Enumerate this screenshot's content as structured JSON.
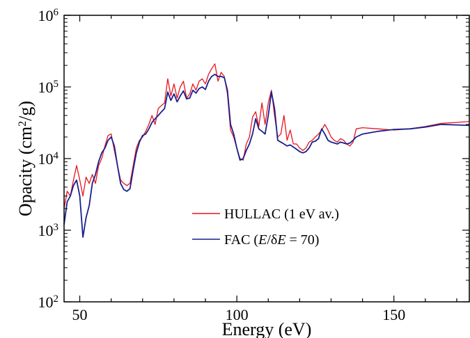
{
  "chart_data": {
    "type": "line",
    "title": "",
    "xlabel": "Energy (eV)",
    "ylabel_parts": {
      "main": "Opacity (cm",
      "sup": "2",
      "tail": "/g)"
    },
    "xlim": [
      45,
      174
    ],
    "ylim": [
      100,
      1000000
    ],
    "yscale": "log",
    "grid": false,
    "legend_position": "center",
    "x_ticks": [
      {
        "value": 50,
        "label": "50"
      },
      {
        "value": 100,
        "label": "100"
      },
      {
        "value": 150,
        "label": "150"
      }
    ],
    "y_ticks": [
      {
        "value": 100,
        "base": "10",
        "exp": "2"
      },
      {
        "value": 1000,
        "base": "10",
        "exp": "3"
      },
      {
        "value": 10000,
        "base": "10",
        "exp": "4"
      },
      {
        "value": 100000,
        "base": "10",
        "exp": "5"
      },
      {
        "value": 1000000,
        "base": "10",
        "exp": "6"
      }
    ],
    "series": [
      {
        "name": "HULLAC (1 eV av.)",
        "legend_parts": [
          "HULLAC (1 eV av.)"
        ],
        "color": "#e8141f",
        "x": [
          45,
          46,
          47,
          48,
          49,
          50,
          51,
          52,
          53,
          54,
          55,
          56,
          57,
          58,
          59,
          60,
          61,
          62,
          63,
          64,
          65,
          66,
          67,
          68,
          69,
          70,
          71,
          72,
          73,
          74,
          75,
          76,
          77,
          78,
          79,
          80,
          81,
          82,
          83,
          84,
          85,
          86,
          87,
          88,
          89,
          90,
          91,
          92,
          93,
          94,
          95,
          96,
          97,
          98,
          99,
          100,
          101,
          102,
          103,
          104,
          105,
          106,
          107,
          108,
          109,
          110,
          111,
          112,
          113,
          114,
          115,
          116,
          117,
          118,
          119,
          120,
          121,
          122,
          123,
          124,
          125,
          126,
          127,
          128,
          129,
          130,
          131,
          132,
          133,
          134,
          135,
          136,
          137,
          138,
          140,
          145,
          150,
          155,
          160,
          165,
          170,
          174
        ],
        "y": [
          2000,
          3500,
          3000,
          5000,
          8000,
          5000,
          3000,
          5500,
          4500,
          6000,
          4500,
          8000,
          10000,
          15000,
          21000,
          22000,
          13000,
          8000,
          5000,
          4500,
          4200,
          4500,
          8000,
          14000,
          18000,
          20000,
          24000,
          30000,
          40000,
          30000,
          50000,
          55000,
          60000,
          130000,
          75000,
          110000,
          70000,
          100000,
          120000,
          70000,
          80000,
          110000,
          90000,
          120000,
          130000,
          110000,
          150000,
          180000,
          210000,
          120000,
          160000,
          140000,
          80000,
          25000,
          20000,
          14000,
          10000,
          9500,
          16000,
          20000,
          38000,
          45000,
          28000,
          60000,
          30000,
          60000,
          90000,
          40000,
          20000,
          22000,
          40000,
          18000,
          25000,
          16000,
          16000,
          14000,
          13000,
          14000,
          17000,
          18000,
          20000,
          22000,
          25000,
          30000,
          25000,
          20000,
          18000,
          17000,
          19000,
          18000,
          16000,
          15000,
          17000,
          26000,
          27000,
          26000,
          25000,
          26000,
          28000,
          31000,
          32000,
          33000
        ]
      },
      {
        "name": "FAC (E/δE = 70)",
        "legend_parts": [
          "FAC (",
          "E",
          "/",
          "δ",
          "E",
          " = 70)"
        ],
        "color": "#1a1f8c",
        "x": [
          45,
          46,
          47,
          48,
          49,
          50,
          51,
          52,
          53,
          54,
          55,
          56,
          57,
          58,
          59,
          60,
          61,
          62,
          63,
          64,
          65,
          66,
          67,
          68,
          69,
          70,
          71,
          72,
          73,
          74,
          75,
          76,
          77,
          78,
          79,
          80,
          81,
          82,
          83,
          84,
          85,
          86,
          87,
          88,
          89,
          90,
          91,
          92,
          93,
          94,
          95,
          96,
          97,
          98,
          99,
          100,
          101,
          102,
          103,
          104,
          105,
          106,
          107,
          108,
          109,
          110,
          111,
          112,
          113,
          114,
          115,
          116,
          117,
          118,
          119,
          120,
          121,
          122,
          123,
          124,
          125,
          126,
          127,
          128,
          129,
          130,
          131,
          132,
          133,
          134,
          135,
          136,
          137,
          138,
          140,
          145,
          150,
          155,
          160,
          165,
          170,
          174
        ],
        "y": [
          1200,
          2500,
          3000,
          4200,
          5000,
          3000,
          800,
          1500,
          2200,
          4500,
          6000,
          9000,
          12000,
          14000,
          18000,
          20000,
          15000,
          8000,
          4500,
          3700,
          3500,
          3800,
          7000,
          12000,
          17000,
          21000,
          22000,
          26000,
          32000,
          36000,
          40000,
          45000,
          50000,
          85000,
          65000,
          80000,
          62000,
          75000,
          88000,
          68000,
          70000,
          90000,
          82000,
          95000,
          100000,
          92000,
          120000,
          140000,
          150000,
          140000,
          140000,
          135000,
          90000,
          30000,
          22000,
          14000,
          9500,
          10000,
          13000,
          16000,
          22000,
          36000,
          26000,
          24000,
          22000,
          40000,
          85000,
          50000,
          18000,
          17000,
          16000,
          15000,
          15500,
          14500,
          13500,
          12500,
          12000,
          12500,
          14000,
          17000,
          17500,
          19000,
          26000,
          22000,
          18000,
          17000,
          16500,
          16000,
          17000,
          16500,
          16000,
          16500,
          18000,
          20000,
          22000,
          24000,
          25500,
          26000,
          27500,
          30000,
          29500,
          29000
        ]
      }
    ]
  }
}
